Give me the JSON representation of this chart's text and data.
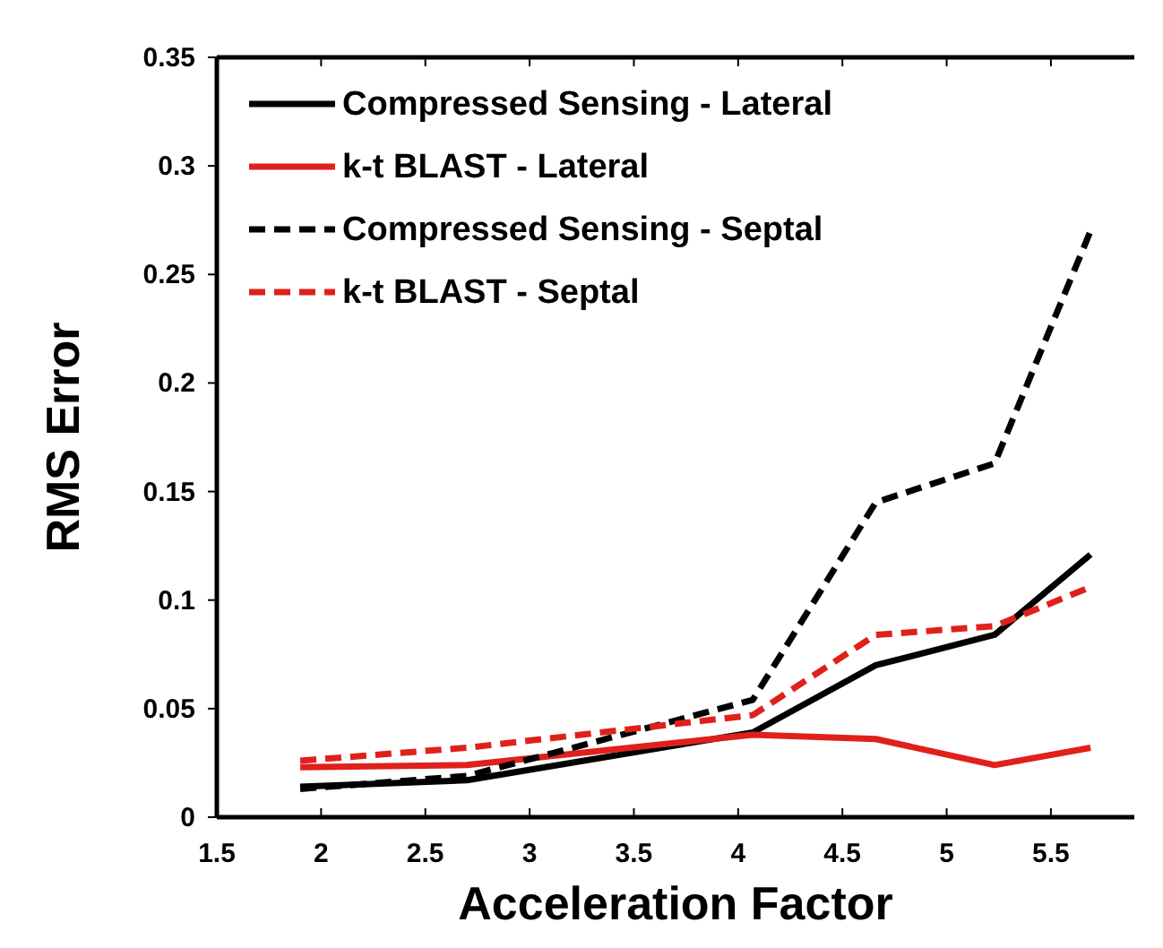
{
  "chart_data": {
    "type": "line",
    "xlabel": "Acceleration Factor",
    "ylabel": "RMS Error",
    "x": [
      1.9,
      2.7,
      4.07,
      4.66,
      5.23,
      5.69
    ],
    "series": [
      {
        "name": "Compressed Sensing - Lateral",
        "color": "#000000",
        "line_style": "solid",
        "values": [
          0.014,
          0.017,
          0.039,
          0.07,
          0.084,
          0.121
        ]
      },
      {
        "name": "k-t BLAST - Lateral",
        "color": "#e0201b",
        "line_style": "solid",
        "values": [
          0.023,
          0.024,
          0.038,
          0.036,
          0.024,
          0.032
        ]
      },
      {
        "name": "Compressed Sensing - Septal",
        "color": "#000000",
        "line_style": "dashed",
        "values": [
          0.013,
          0.019,
          0.054,
          0.145,
          0.163,
          0.27
        ]
      },
      {
        "name": "k-t BLAST - Septal",
        "color": "#e0201b",
        "line_style": "dashed",
        "values": [
          0.026,
          0.032,
          0.047,
          0.084,
          0.088,
          0.106
        ]
      }
    ],
    "xlim": [
      1.5,
      5.9
    ],
    "xticks": [
      1.5,
      2,
      2.5,
      3,
      3.5,
      4,
      4.5,
      5,
      5.5
    ],
    "ylim": [
      0,
      0.35
    ],
    "yticks": [
      0,
      0.05,
      0.1,
      0.15,
      0.2,
      0.25,
      0.3,
      0.35
    ],
    "grid": false,
    "legend": "top left",
    "marker": "none"
  }
}
